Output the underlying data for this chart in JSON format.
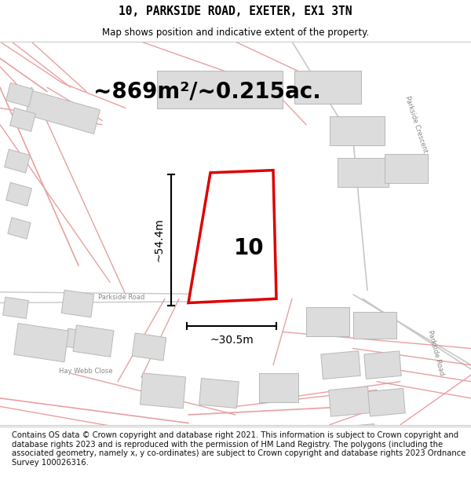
{
  "title": "10, PARKSIDE ROAD, EXETER, EX1 3TN",
  "subtitle": "Map shows position and indicative extent of the property.",
  "area_text": "~869m²/~0.215ac.",
  "dim_width": "~30.5m",
  "dim_height": "~54.4m",
  "number_label": "10",
  "footer": "Contains OS data © Crown copyright and database right 2021. This information is subject to Crown copyright and database rights 2023 and is reproduced with the permission of HM Land Registry. The polygons (including the associated geometry, namely x, y co-ordinates) are subject to Crown copyright and database rights 2023 Ordnance Survey 100026316.",
  "bg_color": "#ffffff",
  "map_bg": "#f8f8f8",
  "road_color": "#e8a0a0",
  "road_color2": "#c8c8c8",
  "building_fill": "#dcdcdc",
  "building_edge": "#b8b8b8",
  "plot_stroke": "#dd0000",
  "plot_fill": "#ffffff",
  "title_color": "#000000",
  "label_color": "#333333",
  "road_label_color": "#888888",
  "footer_color": "#111111",
  "footer_fontsize": 7.2,
  "title_fontsize": 10.5,
  "subtitle_fontsize": 8.5,
  "number_fontsize": 20,
  "area_fontsize": 20,
  "dim_fontsize": 10,
  "road_label_fontsize": 6.0
}
